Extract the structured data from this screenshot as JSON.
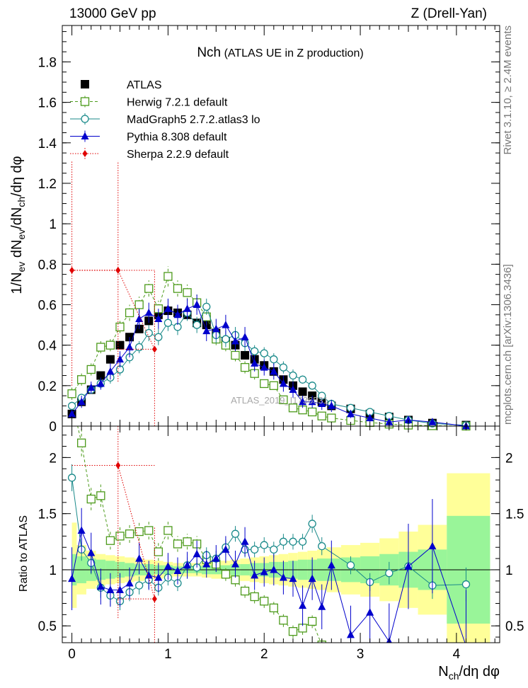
{
  "header": {
    "energy_label": "13000 GeV pp",
    "process_label": "Z (Drell-Yan)",
    "side_rivet": "Rivet 3.1.10, ≥ 2.4M events",
    "side_source": "mcplots.cern.ch [arXiv:1306.3436]",
    "watermark": "ATLAS_2019_I1736531"
  },
  "chart_data": [
    {
      "type": "scatter",
      "title_main": "Nch",
      "title_sub": "(ATLAS UE in Z production)",
      "ylabel": "1/N_ev dN_ev/dN_ch/dη dφ",
      "xlim": [
        -0.1,
        4.45
      ],
      "ylim": [
        0,
        1.98
      ],
      "yticks": [
        0,
        0.2,
        0.4,
        0.6,
        0.8,
        1,
        1.2,
        1.4,
        1.6,
        1.8
      ],
      "ytick_labels": [
        "0",
        "0.2",
        "0.4",
        "0.6",
        "0.8",
        "1",
        "1.2",
        "1.4",
        "1.6",
        "1.8"
      ],
      "x_atlas": [
        0.0,
        0.1,
        0.2,
        0.3,
        0.4,
        0.5,
        0.6,
        0.7,
        0.8,
        0.9,
        1.0,
        1.1,
        1.2,
        1.3,
        1.4,
        1.5,
        1.6,
        1.7,
        1.8,
        1.9,
        2.0,
        2.1,
        2.2,
        2.3,
        2.4,
        2.5,
        2.6,
        2.7,
        2.9,
        3.1,
        3.3,
        3.5,
        3.75,
        4.1
      ],
      "legend": [
        {
          "name": "ATLAS",
          "color": "#000000",
          "marker": "square-filled",
          "line": "none"
        },
        {
          "name": "Herwig 7.2.1 default",
          "color": "#4c9a1a",
          "marker": "square-open",
          "line": "dashed"
        },
        {
          "name": "MadGraph5 2.7.2.atlas3 lo",
          "color": "#1a8a8a",
          "marker": "circle-open",
          "line": "solid"
        },
        {
          "name": "Pythia 8.308 default",
          "color": "#0000cc",
          "marker": "triangle-filled",
          "line": "solid"
        },
        {
          "name": "Sherpa 2.2.9 default",
          "color": "#e00000",
          "marker": "diamond-filled",
          "line": "dotted"
        }
      ],
      "series": [
        {
          "name": "ATLAS",
          "x": [
            0.0,
            0.1,
            0.2,
            0.3,
            0.4,
            0.5,
            0.6,
            0.7,
            0.8,
            0.9,
            1.0,
            1.1,
            1.2,
            1.3,
            1.4,
            1.5,
            1.6,
            1.7,
            1.8,
            1.9,
            2.0,
            2.1,
            2.2,
            2.3,
            2.4,
            2.5,
            2.6,
            2.7,
            2.9,
            3.1,
            3.3,
            3.5,
            3.75,
            4.1
          ],
          "y": [
            0.06,
            0.12,
            0.18,
            0.25,
            0.33,
            0.4,
            0.44,
            0.48,
            0.52,
            0.55,
            0.57,
            0.56,
            0.55,
            0.51,
            0.5,
            0.46,
            0.42,
            0.4,
            0.35,
            0.33,
            0.3,
            0.27,
            0.23,
            0.2,
            0.17,
            0.15,
            0.12,
            0.1,
            0.085,
            0.06,
            0.045,
            0.03,
            0.015,
            0.005
          ]
        },
        {
          "name": "Herwig 7.2.1 default",
          "x": [
            0.0,
            0.1,
            0.2,
            0.3,
            0.4,
            0.5,
            0.6,
            0.7,
            0.8,
            0.9,
            1.0,
            1.1,
            1.2,
            1.3,
            1.4,
            1.5,
            1.6,
            1.7,
            1.8,
            1.9,
            2.0,
            2.1,
            2.2,
            2.3,
            2.4,
            2.5,
            2.6,
            2.7,
            2.9,
            3.1,
            3.3,
            3.5,
            3.75,
            4.1
          ],
          "y": [
            0.16,
            0.23,
            0.28,
            0.39,
            0.4,
            0.49,
            0.56,
            0.6,
            0.68,
            0.58,
            0.74,
            0.68,
            0.66,
            0.61,
            0.54,
            0.43,
            0.4,
            0.35,
            0.29,
            0.26,
            0.21,
            0.2,
            0.13,
            0.09,
            0.08,
            0.07,
            0.05,
            0.04,
            0.028,
            0.018,
            0.01,
            0.005,
            0.002,
            0.0
          ],
          "yerr": [
            0.03,
            0.03,
            0.03,
            0.03,
            0.03,
            0.03,
            0.04,
            0.04,
            0.04,
            0.04,
            0.05,
            0.04,
            0.04,
            0.04,
            0.04,
            0.03,
            0.03,
            0.03,
            0.03,
            0.03,
            0.02,
            0.02,
            0.02,
            0.02,
            0.02,
            0.02,
            0.01,
            0.01,
            0.01,
            0.01,
            0.005,
            0.003,
            0.002,
            0.0
          ]
        },
        {
          "name": "MadGraph5 2.7.2.atlas3 lo",
          "x": [
            0.0,
            0.1,
            0.2,
            0.3,
            0.4,
            0.5,
            0.6,
            0.7,
            0.8,
            0.9,
            1.0,
            1.1,
            1.2,
            1.3,
            1.4,
            1.5,
            1.6,
            1.7,
            1.8,
            1.9,
            2.0,
            2.1,
            2.2,
            2.3,
            2.4,
            2.5,
            2.6,
            2.7,
            2.9,
            3.1,
            3.3,
            3.5,
            3.75,
            4.1
          ],
          "y": [
            0.1,
            0.14,
            0.18,
            0.21,
            0.24,
            0.28,
            0.34,
            0.39,
            0.46,
            0.44,
            0.51,
            0.49,
            0.56,
            0.5,
            0.59,
            0.45,
            0.43,
            0.45,
            0.41,
            0.37,
            0.36,
            0.33,
            0.29,
            0.25,
            0.23,
            0.2,
            0.15,
            0.11,
            0.09,
            0.07,
            0.05,
            0.03,
            0.013,
            0.004
          ],
          "yerr": [
            0.02,
            0.02,
            0.02,
            0.02,
            0.03,
            0.03,
            0.03,
            0.03,
            0.04,
            0.04,
            0.04,
            0.04,
            0.04,
            0.04,
            0.04,
            0.04,
            0.04,
            0.04,
            0.04,
            0.03,
            0.03,
            0.03,
            0.03,
            0.03,
            0.02,
            0.02,
            0.02,
            0.02,
            0.01,
            0.01,
            0.01,
            0.005,
            0.004,
            0.003
          ]
        },
        {
          "name": "Pythia 8.308 default",
          "x": [
            0.0,
            0.1,
            0.2,
            0.3,
            0.4,
            0.5,
            0.6,
            0.7,
            0.8,
            0.9,
            1.0,
            1.1,
            1.2,
            1.3,
            1.4,
            1.5,
            1.6,
            1.7,
            1.8,
            1.9,
            2.0,
            2.1,
            2.2,
            2.3,
            2.4,
            2.5,
            2.6,
            2.7,
            2.9,
            3.1,
            3.3,
            3.5,
            3.75,
            4.1
          ],
          "y": [
            0.06,
            0.12,
            0.19,
            0.21,
            0.27,
            0.33,
            0.39,
            0.53,
            0.56,
            0.53,
            0.58,
            0.55,
            0.58,
            0.6,
            0.47,
            0.48,
            0.5,
            0.42,
            0.44,
            0.31,
            0.29,
            0.27,
            0.21,
            0.18,
            0.12,
            0.12,
            0.11,
            0.1,
            0.06,
            0.04,
            0.02,
            0.03,
            0.02,
            0.0
          ],
          "yerr": [
            0.02,
            0.03,
            0.03,
            0.03,
            0.04,
            0.04,
            0.05,
            0.05,
            0.05,
            0.05,
            0.05,
            0.05,
            0.05,
            0.05,
            0.05,
            0.05,
            0.05,
            0.05,
            0.05,
            0.04,
            0.04,
            0.04,
            0.04,
            0.04,
            0.03,
            0.03,
            0.03,
            0.03,
            0.02,
            0.02,
            0.02,
            0.02,
            0.01,
            0.0
          ]
        },
        {
          "name": "Sherpa 2.2.9 default",
          "x": [
            0.0,
            0.48,
            0.86
          ],
          "y": [
            0.77,
            0.77,
            0.38
          ],
          "ylo": [
            0.2,
            0.22,
            0.0
          ],
          "yhi": [
            1.31,
            1.31,
            0.77
          ],
          "xlo": [
            0.0,
            0.0,
            0.48
          ],
          "xhi": [
            0.48,
            0.86,
            0.86
          ]
        }
      ]
    },
    {
      "type": "scatter",
      "ylabel": "Ratio to ATLAS",
      "xlabel": "N_ch/dη dφ",
      "xlim": [
        -0.1,
        4.45
      ],
      "ylim": [
        0.35,
        2.28
      ],
      "yticks": [
        0.5,
        1,
        1.5,
        2
      ],
      "ytick_labels": [
        "0.5",
        "1",
        "1.5",
        "2"
      ],
      "xticks": [
        0,
        1,
        2,
        3,
        4
      ],
      "xtick_labels": [
        "0",
        "1",
        "2",
        "3",
        "4"
      ],
      "bands": {
        "x_edges": [
          0.0,
          0.05,
          0.15,
          0.25,
          0.35,
          0.45,
          0.55,
          0.65,
          0.75,
          0.85,
          0.95,
          1.05,
          1.15,
          1.25,
          1.35,
          1.45,
          1.55,
          1.65,
          1.75,
          1.85,
          1.95,
          2.05,
          2.15,
          2.25,
          2.35,
          2.45,
          2.55,
          2.65,
          2.8,
          3.0,
          3.2,
          3.4,
          3.6,
          3.9,
          4.35
        ],
        "inner_lo": [
          0.86,
          0.88,
          0.9,
          0.91,
          0.92,
          0.93,
          0.94,
          0.95,
          0.95,
          0.96,
          0.96,
          0.97,
          0.97,
          0.97,
          0.96,
          0.96,
          0.96,
          0.95,
          0.95,
          0.94,
          0.94,
          0.93,
          0.93,
          0.92,
          0.91,
          0.91,
          0.9,
          0.9,
          0.89,
          0.88,
          0.86,
          0.84,
          0.82,
          0.52
        ],
        "inner_hi": [
          1.14,
          1.12,
          1.1,
          1.09,
          1.08,
          1.07,
          1.06,
          1.05,
          1.05,
          1.04,
          1.04,
          1.03,
          1.03,
          1.03,
          1.04,
          1.04,
          1.04,
          1.05,
          1.05,
          1.06,
          1.06,
          1.07,
          1.07,
          1.08,
          1.09,
          1.09,
          1.1,
          1.1,
          1.11,
          1.12,
          1.14,
          1.16,
          1.18,
          1.48
        ],
        "outer_lo": [
          0.66,
          0.78,
          0.83,
          0.86,
          0.87,
          0.88,
          0.89,
          0.9,
          0.91,
          0.92,
          0.93,
          0.94,
          0.94,
          0.94,
          0.93,
          0.92,
          0.92,
          0.91,
          0.9,
          0.89,
          0.88,
          0.87,
          0.86,
          0.85,
          0.84,
          0.83,
          0.82,
          0.8,
          0.78,
          0.76,
          0.72,
          0.66,
          0.6,
          0.35
        ],
        "outer_hi": [
          1.42,
          1.22,
          1.17,
          1.14,
          1.13,
          1.12,
          1.11,
          1.1,
          1.09,
          1.08,
          1.07,
          1.06,
          1.06,
          1.06,
          1.07,
          1.08,
          1.08,
          1.09,
          1.1,
          1.11,
          1.12,
          1.13,
          1.14,
          1.15,
          1.16,
          1.17,
          1.18,
          1.2,
          1.22,
          1.24,
          1.28,
          1.34,
          1.4,
          1.86
        ]
      },
      "series": [
        {
          "name": "Herwig 7.2.1 default",
          "x": [
            0.0,
            0.1,
            0.2,
            0.3,
            0.4,
            0.5,
            0.6,
            0.7,
            0.8,
            0.9,
            1.0,
            1.1,
            1.2,
            1.3,
            1.4,
            1.5,
            1.6,
            1.7,
            1.8,
            1.9,
            2.0,
            2.1,
            2.2,
            2.3,
            2.4,
            2.5,
            2.6,
            2.7
          ],
          "y": [
            2.5,
            2.13,
            1.63,
            1.66,
            1.26,
            1.3,
            1.32,
            1.34,
            1.35,
            1.16,
            1.35,
            1.23,
            1.25,
            1.23,
            1.09,
            1.05,
            0.96,
            0.91,
            0.81,
            0.76,
            0.72,
            0.66,
            0.55,
            0.45,
            0.48,
            0.54,
            0.33,
            0.3
          ],
          "yerr": [
            0.2,
            0.12,
            0.1,
            0.1,
            0.08,
            0.08,
            0.08,
            0.08,
            0.08,
            0.08,
            0.08,
            0.07,
            0.07,
            0.07,
            0.07,
            0.06,
            0.06,
            0.06,
            0.06,
            0.06,
            0.06,
            0.06,
            0.06,
            0.06,
            0.06,
            0.06,
            0.06,
            0.06
          ]
        },
        {
          "name": "MadGraph5 2.7.2.atlas3 lo",
          "x": [
            0.0,
            0.1,
            0.2,
            0.3,
            0.4,
            0.5,
            0.6,
            0.7,
            0.8,
            0.9,
            1.0,
            1.1,
            1.2,
            1.3,
            1.4,
            1.5,
            1.6,
            1.7,
            1.8,
            1.9,
            2.0,
            2.1,
            2.2,
            2.3,
            2.4,
            2.5,
            2.6,
            2.9,
            3.1,
            3.3,
            3.5,
            3.75,
            4.1
          ],
          "y": [
            1.82,
            1.18,
            1.06,
            0.84,
            0.77,
            0.72,
            0.8,
            0.86,
            0.91,
            0.84,
            0.93,
            0.88,
            1.04,
            1.02,
            1.13,
            1.1,
            1.2,
            1.32,
            1.18,
            1.18,
            1.22,
            1.18,
            1.25,
            1.25,
            1.25,
            1.41,
            1.21,
            1.04,
            0.89,
            0.97,
            1.03,
            0.86,
            0.87
          ],
          "yerr": [
            0.12,
            0.1,
            0.1,
            0.09,
            0.09,
            0.08,
            0.08,
            0.08,
            0.08,
            0.07,
            0.07,
            0.07,
            0.07,
            0.07,
            0.07,
            0.07,
            0.07,
            0.07,
            0.07,
            0.07,
            0.07,
            0.07,
            0.07,
            0.07,
            0.07,
            0.08,
            0.08,
            0.08,
            0.08,
            0.1,
            0.1,
            0.12,
            0.15
          ]
        },
        {
          "name": "Pythia 8.308 default",
          "x": [
            0.0,
            0.1,
            0.2,
            0.3,
            0.4,
            0.5,
            0.6,
            0.7,
            0.8,
            0.9,
            1.0,
            1.1,
            1.2,
            1.3,
            1.4,
            1.5,
            1.6,
            1.7,
            1.8,
            1.9,
            2.0,
            2.1,
            2.2,
            2.3,
            2.4,
            2.5,
            2.6,
            2.7,
            2.9,
            3.1,
            3.3,
            3.5,
            3.75,
            4.1
          ],
          "y": [
            0.92,
            1.35,
            1.15,
            0.85,
            0.82,
            0.82,
            0.88,
            1.1,
            0.95,
            0.93,
            1.03,
            0.99,
            1.04,
            1.14,
            1.05,
            1.1,
            1.18,
            1.05,
            1.25,
            0.95,
            0.98,
            1.0,
            0.93,
            0.92,
            0.68,
            0.92,
            0.67,
            1.04,
            0.42,
            0.62,
            0.36,
            1.03,
            1.21,
            0.32
          ],
          "yerr": [
            0.28,
            0.2,
            0.18,
            0.16,
            0.15,
            0.15,
            0.14,
            0.14,
            0.13,
            0.13,
            0.12,
            0.12,
            0.12,
            0.12,
            0.12,
            0.12,
            0.12,
            0.12,
            0.13,
            0.13,
            0.13,
            0.14,
            0.15,
            0.16,
            0.18,
            0.19,
            0.2,
            0.22,
            0.26,
            0.3,
            0.34,
            0.38,
            0.42,
            0.5
          ]
        },
        {
          "name": "Sherpa 2.2.9 default",
          "x": [
            0.48,
            0.86
          ],
          "y": [
            1.93,
            0.74
          ],
          "ylo": [
            0.57,
            0.35
          ],
          "yhi": [
            2.28,
            1.38
          ],
          "xlo": [
            0.0,
            0.48
          ],
          "xhi": [
            0.86,
            0.86
          ]
        }
      ]
    }
  ]
}
